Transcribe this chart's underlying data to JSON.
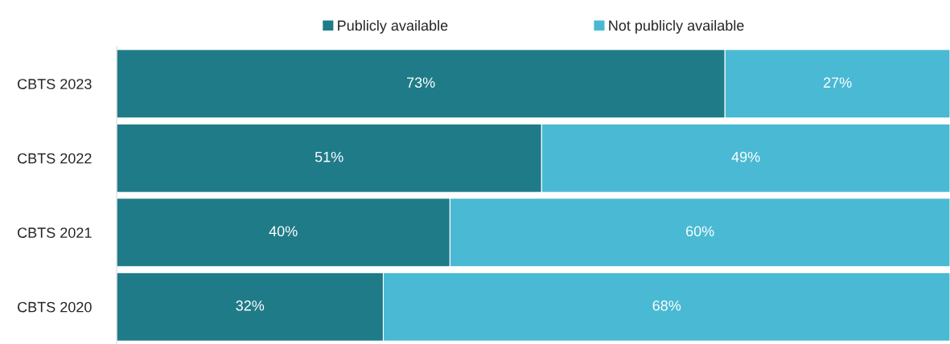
{
  "chart_data": {
    "type": "bar",
    "orientation": "horizontal",
    "stacked": true,
    "categories": [
      "CBTS 2023",
      "CBTS 2022",
      "CBTS 2021",
      "CBTS 2020"
    ],
    "series": [
      {
        "name": "Publicly available",
        "color": "#1f7b88",
        "values": [
          73,
          51,
          40,
          32
        ],
        "value_labels": [
          "73%",
          "51%",
          "40%",
          "32%"
        ]
      },
      {
        "name": "Not publicly available",
        "color": "#4ab9d3",
        "values": [
          27,
          49,
          60,
          68
        ],
        "value_labels": [
          "27%",
          "49%",
          "60%",
          "68%"
        ]
      }
    ],
    "legend": "top",
    "tick_labels": "y"
  }
}
